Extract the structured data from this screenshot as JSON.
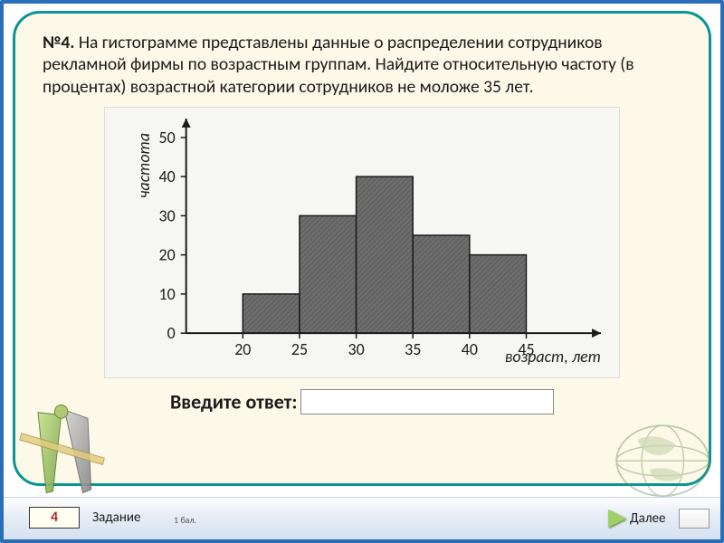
{
  "question": {
    "num": "№4.",
    "text": " На гистограмме представлены данные о распределении сотрудников рекламной фирмы по возрастным группам. Найдите относительную частоту (в процентах) возрастной категории сотрудников не моложе 35 лет."
  },
  "chart": {
    "type": "histogram",
    "y_label": "частота",
    "x_label": "возраст, лет",
    "x_ticks": [
      "20",
      "25",
      "30",
      "35",
      "40",
      "45"
    ],
    "y_ticks": [
      "0",
      "10",
      "20",
      "30",
      "40",
      "50"
    ],
    "bars": [
      {
        "x0": 20,
        "x1": 25,
        "h": 10
      },
      {
        "x0": 25,
        "x1": 30,
        "h": 30
      },
      {
        "x0": 30,
        "x1": 35,
        "h": 40
      },
      {
        "x0": 35,
        "x1": 40,
        "h": 25
      },
      {
        "x0": 40,
        "x1": 45,
        "h": 20
      }
    ],
    "x_domain": [
      15,
      50
    ],
    "y_domain": [
      0,
      53
    ],
    "bar_fill": "#6d6d6d",
    "bar_stroke": "#1a1a1a",
    "axis_color": "#1a1a1a",
    "bg": "#f6f6f2",
    "tick_fontsize": 18,
    "label_fontsize": 18
  },
  "answer": {
    "label": "Введите ответ:",
    "value": ""
  },
  "footer": {
    "task_num": "4",
    "task_label": "Задание",
    "points": "1 бал.",
    "next": "Далее"
  }
}
